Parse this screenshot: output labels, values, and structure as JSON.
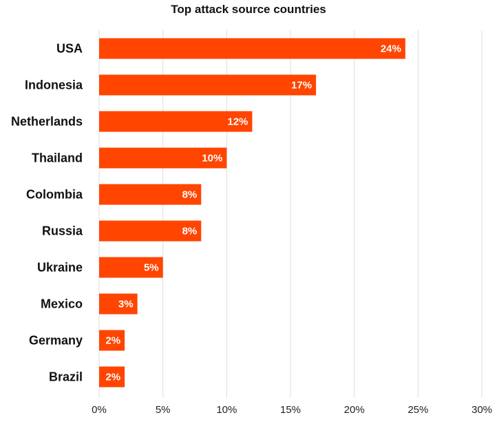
{
  "chart_data": {
    "type": "bar",
    "orientation": "horizontal",
    "title": "Top attack source countries",
    "xlabel": "",
    "ylabel": "",
    "categories": [
      "USA",
      "Indonesia",
      "Netherlands",
      "Thailand",
      "Colombia",
      "Russia",
      "Ukraine",
      "Mexico",
      "Germany",
      "Brazil"
    ],
    "values": [
      24,
      17,
      12,
      10,
      8,
      8,
      5,
      3,
      2,
      2
    ],
    "value_labels": [
      "24%",
      "17%",
      "12%",
      "10%",
      "8%",
      "8%",
      "5%",
      "3%",
      "2%",
      "2%"
    ],
    "xlim": [
      0,
      30
    ],
    "xticks": [
      0,
      5,
      10,
      15,
      20,
      25,
      30
    ],
    "xtick_labels": [
      "0%",
      "5%",
      "10%",
      "15%",
      "20%",
      "25%",
      "30%"
    ],
    "grid": "vertical",
    "legend": "none",
    "bar_color": "#ff4500",
    "label_color": "#ffffff",
    "grid_color": "#dddddd"
  }
}
